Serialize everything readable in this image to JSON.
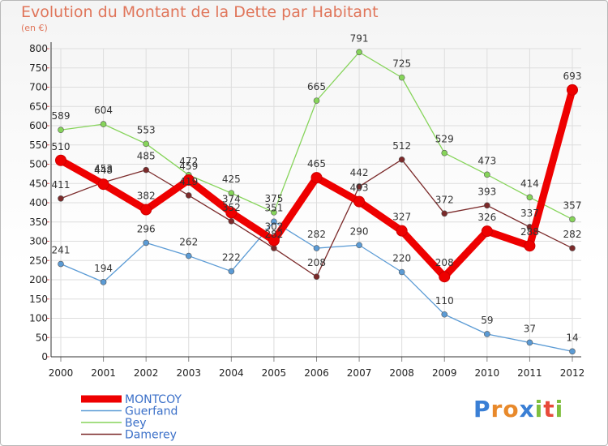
{
  "title": "Evolution du Montant de la Dette par Habitant",
  "subtitle": "(en €)",
  "brand": {
    "letters": [
      "P",
      "r",
      "o",
      "x",
      "i",
      "t",
      "i"
    ],
    "colors": [
      "#3a7fd5",
      "#e8892b",
      "#e8892b",
      "#3a7fd5",
      "#7fbf3f",
      "#e84a3a",
      "#7fbf3f"
    ]
  },
  "chart_data": {
    "type": "line",
    "x": [
      "2000",
      "2001",
      "2002",
      "2003",
      "2004",
      "2005",
      "2006",
      "2007",
      "2008",
      "2009",
      "2010",
      "2011",
      "2012"
    ],
    "ylim": [
      0,
      800
    ],
    "yticks": [
      "0",
      "50",
      "100",
      "150",
      "200",
      "250",
      "300",
      "350",
      "400",
      "450",
      "500",
      "550",
      "600",
      "650",
      "700",
      "750",
      "800"
    ],
    "grid": true,
    "legend_position": "bottom-left",
    "series": [
      {
        "name": "Guerfand",
        "color": "#5b9bd5",
        "values": [
          241,
          194,
          296,
          262,
          222,
          351,
          282,
          290,
          220,
          110,
          59,
          37,
          14
        ]
      },
      {
        "name": "Bey",
        "color": "#86d45a",
        "values": [
          589,
          604,
          553,
          472,
          425,
          375,
          665,
          791,
          725,
          529,
          473,
          414,
          357
        ]
      },
      {
        "name": "Damerey",
        "color": "#7b2a2a",
        "values": [
          411,
          453,
          485,
          419,
          352,
          282,
          208,
          442,
          512,
          372,
          393,
          337,
          282
        ]
      },
      {
        "name": "MONTCOY",
        "color": "#ee0000",
        "values": [
          510,
          448,
          382,
          459,
          374,
          302,
          465,
          403,
          327,
          208,
          326,
          288,
          693
        ]
      }
    ]
  }
}
